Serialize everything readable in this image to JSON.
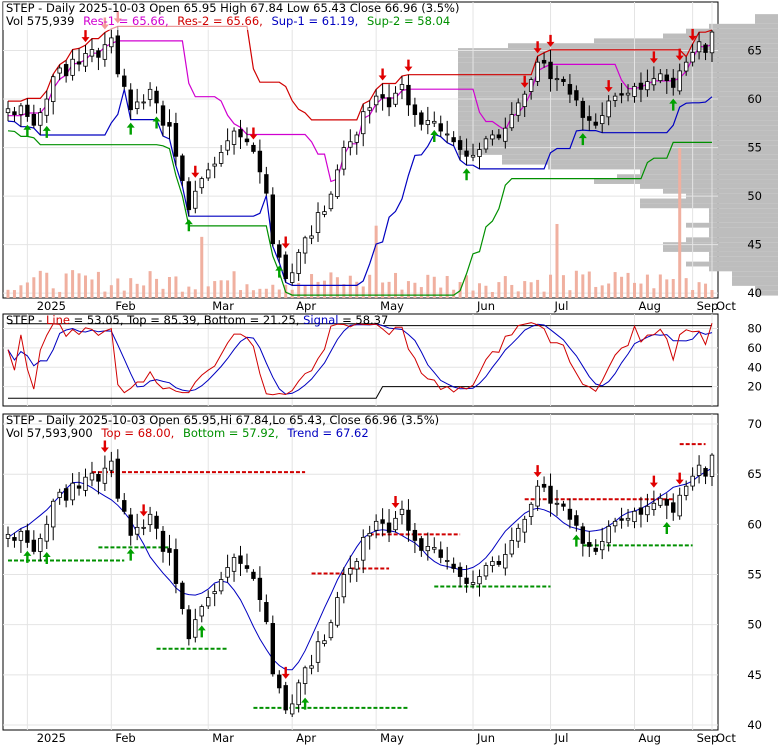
{
  "chart_data": [
    {
      "type": "candlestick",
      "title": "STEP - Daily 2025-10-03 Open 65.95  High 67.84  Low 65.43  Close 66.96 (3.5%)",
      "legend": [
        {
          "text": "Vol 575,939",
          "color": "#000000"
        },
        {
          "text": "Res-1 = 65.66,",
          "color": "#d000d0"
        },
        {
          "text": "Res-2 = 65.66,",
          "color": "#d00000"
        },
        {
          "text": "Sup-1 = 61.19,",
          "color": "#0000c0"
        },
        {
          "text": "Sup-2 = 58.04",
          "color": "#009000"
        }
      ],
      "ylim": [
        39.5,
        70
      ],
      "yticks": [
        40,
        45,
        50,
        55,
        60,
        65
      ],
      "xticks": [
        "2025",
        "Feb",
        "Mar",
        "Apr",
        "May",
        "Jun",
        "Jul",
        "Aug",
        "Sep",
        "Oct"
      ],
      "close": [
        59.0,
        58.4,
        59.3,
        58.2,
        57.3,
        58.6,
        60.0,
        62.3,
        63.2,
        62.4,
        64.1,
        63.6,
        64.7,
        65.1,
        64.3,
        65.6,
        66.3,
        62.6,
        61.3,
        58.9,
        59.7,
        59.7,
        61.0,
        59.6,
        57.3,
        57.2,
        54.1,
        51.6,
        48.6,
        50.5,
        51.8,
        52.7,
        53.3,
        54.5,
        55.7,
        56.7,
        56.1,
        55.6,
        54.6,
        52.5,
        50.3,
        45.1,
        43.7,
        41.5,
        42.1,
        44.2,
        45.7,
        45.9,
        48.3,
        48.4,
        50.2,
        52.7,
        55.0,
        55.6,
        56.3,
        58.7,
        59.1,
        60.3,
        60.1,
        59.2,
        60.6,
        61.5,
        59.4,
        58.4,
        57.4,
        57.8,
        57.7,
        56.7,
        56.4,
        55.6,
        54.8,
        54.1,
        54.2,
        54.8,
        55.9,
        56.3,
        56.0,
        57.0,
        58.4,
        59.6,
        60.5,
        62.0,
        63.8,
        63.7,
        62.1,
        62.1,
        61.8,
        60.5,
        59.9,
        58.1,
        57.8,
        57.3,
        58.3,
        59.8,
        60.3,
        60.4,
        60.6,
        61.3,
        61.0,
        61.8,
        62.1,
        62.6,
        61.9,
        61.2,
        62.9,
        63.8,
        64.8,
        65.9,
        64.8,
        66.9
      ],
      "volume_scale": "relative",
      "volume_profile": "right-side histogram"
    },
    {
      "type": "line",
      "title": "STEP - Line = 53.05, Top = 85.39, Bottom = 21.25, Signal = 58.37",
      "legend": [
        {
          "text": "STEP - ",
          "color": "#000000"
        },
        {
          "text": "Line",
          "color": "#d00000"
        },
        {
          "text": " = 53.05, Top = 85.39, Bottom = 21.25, ",
          "color": "#000000"
        },
        {
          "text": "Signal",
          "color": "#0000c0"
        },
        {
          "text": " = 58.37",
          "color": "#000000"
        }
      ],
      "ylim": [
        0,
        95
      ],
      "yticks": [
        20,
        40,
        60,
        80
      ],
      "series": [
        {
          "name": "Line",
          "color": "#d00000"
        },
        {
          "name": "Signal",
          "color": "#0000c0"
        }
      ]
    },
    {
      "type": "candlestick",
      "title": "STEP - Daily 2025-10-03 Open 65.95,Hi 67.84,Lo 65.43, Close 66.96 (3.5%)",
      "legend": [
        {
          "text": "Vol 57,593,900",
          "color": "#000000"
        },
        {
          "text": "Top = 68.00,",
          "color": "#d00000"
        },
        {
          "text": "Bottom = 57.92,",
          "color": "#009000"
        },
        {
          "text": "Trend = 67.62",
          "color": "#0000c0"
        }
      ],
      "ylim": [
        39.5,
        71
      ],
      "yticks": [
        40,
        45,
        50,
        55,
        60,
        65,
        70
      ],
      "xticks": [
        "2025",
        "Feb",
        "Mar",
        "Apr",
        "May",
        "Jun",
        "Jul",
        "Aug",
        "Sep",
        "Oct"
      ]
    }
  ]
}
